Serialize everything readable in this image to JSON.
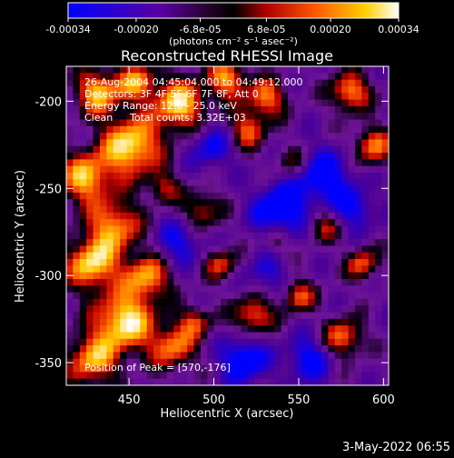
{
  "colorbar": {
    "tick_labels": [
      "-0.00034",
      "-0.00020",
      "-6.8e-05",
      "6.8e-05",
      "0.00020",
      "0.00034"
    ],
    "tick_values": [
      -0.00034,
      -0.0002,
      -6.8e-05,
      6.8e-05,
      0.0002,
      0.00034
    ],
    "unit_label": "(photons cm⁻² s⁻¹ asec⁻²)",
    "range": [
      -0.00034,
      0.00034
    ]
  },
  "chart_data": {
    "type": "heatmap",
    "title": "Reconstructed RHESSI Image",
    "xlabel": "Heliocentric X (arcsec)",
    "ylabel": "Heliocentric Y (arcsec)",
    "xlim": [
      413,
      603
    ],
    "ylim": [
      -363,
      -180
    ],
    "xticks": [
      450,
      500,
      550,
      600
    ],
    "yticks": [
      -200,
      -250,
      -300,
      -350
    ],
    "colormap": [
      "#0000ff",
      "#4b0082",
      "#800080",
      "#000000",
      "#cc0000",
      "#ff6600",
      "#ffcc00",
      "#ffffff"
    ],
    "annotations": {
      "time": "26-Aug-2004 04:45:04.000 to 04:49:12.000",
      "detectors": "Detectors: 3F 4F 5F 6F 7F 8F, Att 0",
      "energy": "Energy Range: 12.0 - 25.0 keV",
      "method": "Clean",
      "counts": "Total counts: 3.32E+03",
      "peak": "Position of Peak = [570,-176]"
    },
    "hot_regions_fraction_desc": "bright emission concentrated along left side and top-center; purple/blue background elsewhere"
  },
  "footer": {
    "date": "3-May-2022 06:55"
  }
}
